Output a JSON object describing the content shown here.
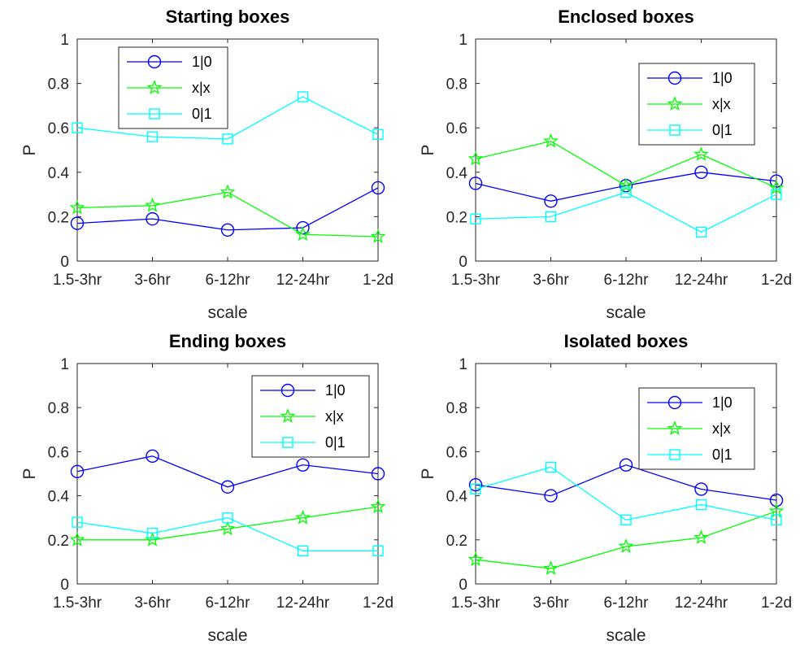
{
  "chart_data": [
    {
      "type": "line",
      "title": "Starting boxes",
      "xlabel": "scale",
      "ylabel": "P",
      "categories": [
        "1.5-3hr",
        "3-6hr",
        "6-12hr",
        "12-24hr",
        "1-2d"
      ],
      "ylim": [
        0,
        1
      ],
      "yticks": [
        "0",
        "0.2",
        "0.4",
        "0.6",
        "0.8",
        "1"
      ],
      "legend_position": "top-left",
      "series": [
        {
          "name": "1|0",
          "color": "#0000ff",
          "marker": "circle",
          "values": [
            0.17,
            0.19,
            0.14,
            0.15,
            0.33
          ]
        },
        {
          "name": "x|x",
          "color": "#00ff00",
          "marker": "star",
          "values": [
            0.24,
            0.25,
            0.31,
            0.12,
            0.11
          ]
        },
        {
          "name": "0|1",
          "color": "#00ffff",
          "marker": "square",
          "values": [
            0.6,
            0.56,
            0.55,
            0.74,
            0.57
          ]
        }
      ]
    },
    {
      "type": "line",
      "title": "Enclosed boxes",
      "xlabel": "scale",
      "ylabel": "P",
      "categories": [
        "1.5-3hr",
        "3-6hr",
        "6-12hr",
        "12-24hr",
        "1-2d"
      ],
      "ylim": [
        0,
        1
      ],
      "yticks": [
        "0",
        "0.2",
        "0.4",
        "0.6",
        "0.8",
        "1"
      ],
      "legend_position": "top-right",
      "series": [
        {
          "name": "1|0",
          "color": "#0000ff",
          "marker": "circle",
          "values": [
            0.35,
            0.27,
            0.34,
            0.4,
            0.36
          ]
        },
        {
          "name": "x|x",
          "color": "#00ff00",
          "marker": "star",
          "values": [
            0.46,
            0.54,
            0.34,
            0.48,
            0.33
          ]
        },
        {
          "name": "0|1",
          "color": "#00ffff",
          "marker": "square",
          "values": [
            0.19,
            0.2,
            0.31,
            0.13,
            0.3
          ]
        }
      ]
    },
    {
      "type": "line",
      "title": "Ending boxes",
      "xlabel": "scale",
      "ylabel": "P",
      "categories": [
        "1.5-3hr",
        "3-6hr",
        "6-12hr",
        "12-24hr",
        "1-2d"
      ],
      "ylim": [
        0,
        1
      ],
      "yticks": [
        "0",
        "0.2",
        "0.4",
        "0.6",
        "0.8",
        "1"
      ],
      "legend_position": "top-right",
      "series": [
        {
          "name": "1|0",
          "color": "#0000ff",
          "marker": "circle",
          "values": [
            0.51,
            0.58,
            0.44,
            0.54,
            0.5
          ]
        },
        {
          "name": "x|x",
          "color": "#00ff00",
          "marker": "star",
          "values": [
            0.2,
            0.2,
            0.25,
            0.3,
            0.35
          ]
        },
        {
          "name": "0|1",
          "color": "#00ffff",
          "marker": "square",
          "values": [
            0.28,
            0.23,
            0.3,
            0.15,
            0.15
          ]
        }
      ]
    },
    {
      "type": "line",
      "title": "Isolated boxes",
      "xlabel": "scale",
      "ylabel": "P",
      "categories": [
        "1.5-3hr",
        "3-6hr",
        "6-12hr",
        "12-24hr",
        "1-2d"
      ],
      "ylim": [
        0,
        1
      ],
      "yticks": [
        "0",
        "0.2",
        "0.4",
        "0.6",
        "0.8",
        "1"
      ],
      "legend_position": "top-right",
      "series": [
        {
          "name": "1|0",
          "color": "#0000ff",
          "marker": "circle",
          "values": [
            0.45,
            0.4,
            0.54,
            0.43,
            0.38
          ]
        },
        {
          "name": "x|x",
          "color": "#00ff00",
          "marker": "star",
          "values": [
            0.11,
            0.07,
            0.17,
            0.21,
            0.33
          ]
        },
        {
          "name": "0|1",
          "color": "#00ffff",
          "marker": "square",
          "values": [
            0.43,
            0.53,
            0.29,
            0.36,
            0.29
          ]
        }
      ]
    }
  ]
}
